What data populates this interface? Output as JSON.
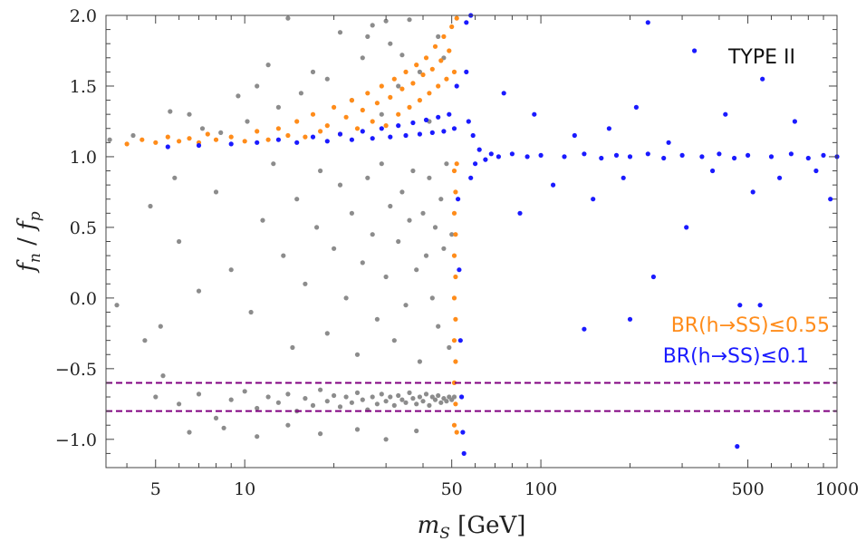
{
  "chart_data": {
    "type": "scatter",
    "annotation": "TYPE II",
    "xlabel": {
      "main": "m",
      "sub": "S",
      "unit": " [GeV]"
    },
    "ylabel": {
      "f1": "f",
      "s1": "n",
      "sep": " / ",
      "f2": "f",
      "s2": "p"
    },
    "x_scale": "log",
    "xlim": [
      3.4,
      1000
    ],
    "ylim": [
      -1.2,
      2.0
    ],
    "x_ticks": [
      {
        "value": 5,
        "label": "5"
      },
      {
        "value": 10,
        "label": "10"
      },
      {
        "value": 50,
        "label": "50"
      },
      {
        "value": 100,
        "label": "100"
      },
      {
        "value": 500,
        "label": "500"
      },
      {
        "value": 1000,
        "label": "1000"
      }
    ],
    "y_ticks": [
      {
        "value": 2.0,
        "label": "2.0"
      },
      {
        "value": 1.5,
        "label": "1.5"
      },
      {
        "value": 1.0,
        "label": "1.0"
      },
      {
        "value": 0.5,
        "label": "0.5"
      },
      {
        "value": 0.0,
        "label": "0.0"
      },
      {
        "value": -0.5,
        "label": "−0.5"
      },
      {
        "value": -1.0,
        "label": "−1.0"
      }
    ],
    "hlines": [
      {
        "y": -0.6,
        "color": "#800080",
        "style": "dashed"
      },
      {
        "y": -0.8,
        "color": "#800080",
        "style": "dashed"
      }
    ],
    "grid": false,
    "legend_position": "right-middle",
    "series": [
      {
        "name": "",
        "color": "#8c8c8c",
        "points": [
          [
            3.5,
            1.12
          ],
          [
            4.2,
            1.15
          ],
          [
            5.6,
            1.32
          ],
          [
            6.5,
            1.3
          ],
          [
            7.2,
            1.2
          ],
          [
            8.3,
            1.17
          ],
          [
            9.5,
            1.43
          ],
          [
            10.2,
            1.25
          ],
          [
            11,
            1.5
          ],
          [
            12,
            1.65
          ],
          [
            13,
            1.35
          ],
          [
            14,
            1.98
          ],
          [
            15.5,
            1.45
          ],
          [
            17,
            1.6
          ],
          [
            19,
            1.55
          ],
          [
            21,
            1.88
          ],
          [
            23,
            1.4
          ],
          [
            25,
            1.7
          ],
          [
            27,
            1.93
          ],
          [
            29,
            1.3
          ],
          [
            31,
            1.8
          ],
          [
            33,
            1.5
          ],
          [
            36,
            1.97
          ],
          [
            39,
            1.6
          ],
          [
            42,
            1.25
          ],
          [
            45,
            1.85
          ],
          [
            47,
            1.7
          ],
          [
            30,
            1.96
          ],
          [
            26,
            1.85
          ],
          [
            34,
            1.72
          ],
          [
            4.8,
            0.65
          ],
          [
            5.2,
            -0.2
          ],
          [
            6,
            0.4
          ],
          [
            7,
            0.05
          ],
          [
            8,
            0.75
          ],
          [
            9,
            0.2
          ],
          [
            10.5,
            -0.1
          ],
          [
            11.5,
            0.55
          ],
          [
            12.5,
            0.95
          ],
          [
            13.5,
            0.3
          ],
          [
            14.5,
            -0.35
          ],
          [
            15,
            0.7
          ],
          [
            16,
            0.1
          ],
          [
            17.5,
            0.5
          ],
          [
            18,
            0.9
          ],
          [
            19,
            -0.25
          ],
          [
            20,
            0.35
          ],
          [
            21,
            0.8
          ],
          [
            22,
            0.0
          ],
          [
            23,
            0.6
          ],
          [
            24,
            -0.4
          ],
          [
            25,
            0.25
          ],
          [
            26,
            0.85
          ],
          [
            27,
            0.45
          ],
          [
            28,
            -0.15
          ],
          [
            29,
            0.95
          ],
          [
            30,
            0.15
          ],
          [
            31,
            0.65
          ],
          [
            32,
            -0.3
          ],
          [
            33,
            0.4
          ],
          [
            34,
            0.75
          ],
          [
            35,
            -0.05
          ],
          [
            36,
            0.55
          ],
          [
            37,
            0.9
          ],
          [
            38,
            0.2
          ],
          [
            39,
            -0.45
          ],
          [
            40,
            0.6
          ],
          [
            41,
            0.3
          ],
          [
            42,
            0.85
          ],
          [
            43,
            0.0
          ],
          [
            44,
            0.5
          ],
          [
            45,
            -0.2
          ],
          [
            46,
            0.7
          ],
          [
            47,
            0.35
          ],
          [
            48,
            0.95
          ],
          [
            49,
            -0.35
          ],
          [
            50,
            0.45
          ],
          [
            5,
            -0.7
          ],
          [
            6,
            -0.75
          ],
          [
            7,
            -0.68
          ],
          [
            8,
            -0.85
          ],
          [
            9,
            -0.72
          ],
          [
            10,
            -0.66
          ],
          [
            11,
            -0.78
          ],
          [
            12,
            -0.7
          ],
          [
            13,
            -0.74
          ],
          [
            14,
            -0.68
          ],
          [
            15,
            -0.8
          ],
          [
            16,
            -0.71
          ],
          [
            17,
            -0.76
          ],
          [
            18,
            -0.65
          ],
          [
            19,
            -0.73
          ],
          [
            20,
            -0.69
          ],
          [
            21,
            -0.77
          ],
          [
            22,
            -0.7
          ],
          [
            23,
            -0.74
          ],
          [
            24,
            -0.67
          ],
          [
            25,
            -0.72
          ],
          [
            26,
            -0.79
          ],
          [
            27,
            -0.7
          ],
          [
            28,
            -0.75
          ],
          [
            29,
            -0.68
          ],
          [
            30,
            -0.73
          ],
          [
            31,
            -0.7
          ],
          [
            32,
            -0.76
          ],
          [
            33,
            -0.69
          ],
          [
            34,
            -0.72
          ],
          [
            35,
            -0.74
          ],
          [
            36,
            -0.67
          ],
          [
            37,
            -0.71
          ],
          [
            38,
            -0.75
          ],
          [
            39,
            -0.7
          ],
          [
            40,
            -0.73
          ],
          [
            41,
            -0.68
          ],
          [
            42,
            -0.76
          ],
          [
            43,
            -0.7
          ],
          [
            44,
            -0.72
          ],
          [
            45,
            -0.69
          ],
          [
            46,
            -0.74
          ],
          [
            47,
            -0.71
          ],
          [
            48,
            -0.73
          ],
          [
            49,
            -0.7
          ],
          [
            50,
            -0.72
          ],
          [
            51,
            -0.7
          ],
          [
            6.5,
            -0.95
          ],
          [
            8.5,
            -0.92
          ],
          [
            11,
            -0.98
          ],
          [
            14,
            -0.9
          ],
          [
            18,
            -0.96
          ],
          [
            24,
            -0.93
          ],
          [
            30,
            -1.0
          ],
          [
            38,
            -0.94
          ],
          [
            3.7,
            -0.05
          ],
          [
            4.6,
            -0.3
          ],
          [
            5.3,
            -0.55
          ],
          [
            5.8,
            0.85
          ]
        ]
      },
      {
        "name": "BR(h→SS)≤0.55",
        "color": "#ff8c1a",
        "points": [
          [
            4,
            1.09
          ],
          [
            4.5,
            1.12
          ],
          [
            5,
            1.1
          ],
          [
            5.5,
            1.14
          ],
          [
            6,
            1.11
          ],
          [
            6.5,
            1.13
          ],
          [
            7,
            1.1
          ],
          [
            7.5,
            1.16
          ],
          [
            8,
            1.12
          ],
          [
            9,
            1.14
          ],
          [
            10,
            1.11
          ],
          [
            11,
            1.18
          ],
          [
            12,
            1.12
          ],
          [
            13,
            1.2
          ],
          [
            14,
            1.15
          ],
          [
            15,
            1.25
          ],
          [
            16,
            1.14
          ],
          [
            17,
            1.3
          ],
          [
            18,
            1.18
          ],
          [
            19,
            1.22
          ],
          [
            20,
            1.35
          ],
          [
            21,
            1.16
          ],
          [
            22,
            1.28
          ],
          [
            23,
            1.4
          ],
          [
            24,
            1.2
          ],
          [
            25,
            1.33
          ],
          [
            26,
            1.45
          ],
          [
            27,
            1.25
          ],
          [
            28,
            1.38
          ],
          [
            29,
            1.5
          ],
          [
            30,
            1.22
          ],
          [
            31,
            1.42
          ],
          [
            32,
            1.55
          ],
          [
            33,
            1.3
          ],
          [
            34,
            1.48
          ],
          [
            35,
            1.6
          ],
          [
            36,
            1.35
          ],
          [
            37,
            1.52
          ],
          [
            38,
            1.65
          ],
          [
            39,
            1.4
          ],
          [
            40,
            1.58
          ],
          [
            41,
            1.7
          ],
          [
            42,
            1.45
          ],
          [
            43,
            1.62
          ],
          [
            44,
            1.78
          ],
          [
            45,
            1.5
          ],
          [
            46,
            1.68
          ],
          [
            47,
            1.85
          ],
          [
            48,
            1.55
          ],
          [
            49,
            1.75
          ],
          [
            50,
            1.92
          ],
          [
            51,
            1.6
          ],
          [
            52,
            1.98
          ],
          [
            51,
            0.9
          ],
          [
            51,
            0.6
          ],
          [
            51,
            0.3
          ],
          [
            51,
            0.0
          ],
          [
            51,
            -0.3
          ],
          [
            51,
            -0.6
          ],
          [
            51,
            -0.9
          ],
          [
            51.5,
            0.75
          ],
          [
            51.5,
            0.45
          ],
          [
            51.5,
            0.15
          ],
          [
            51.5,
            -0.15
          ],
          [
            51.5,
            -0.45
          ],
          [
            51.5,
            -0.75
          ],
          [
            52,
            0.95
          ],
          [
            52,
            -0.95
          ]
        ]
      },
      {
        "name": "BR(h→SS)≤0.1",
        "color": "#1a1aff",
        "points": [
          [
            5.5,
            1.07
          ],
          [
            7,
            1.08
          ],
          [
            9,
            1.09
          ],
          [
            11,
            1.1
          ],
          [
            13,
            1.12
          ],
          [
            15,
            1.1
          ],
          [
            17,
            1.14
          ],
          [
            19,
            1.11
          ],
          [
            21,
            1.16
          ],
          [
            23,
            1.12
          ],
          [
            25,
            1.18
          ],
          [
            27,
            1.13
          ],
          [
            29,
            1.2
          ],
          [
            31,
            1.14
          ],
          [
            33,
            1.22
          ],
          [
            35,
            1.15
          ],
          [
            37,
            1.24
          ],
          [
            39,
            1.16
          ],
          [
            41,
            1.26
          ],
          [
            43,
            1.17
          ],
          [
            45,
            1.28
          ],
          [
            47,
            1.18
          ],
          [
            49,
            1.3
          ],
          [
            51,
            1.2
          ],
          [
            52,
            1.5
          ],
          [
            52.5,
            0.7
          ],
          [
            53,
            0.2
          ],
          [
            53.5,
            -0.3
          ],
          [
            54,
            -0.7
          ],
          [
            54.5,
            -0.95
          ],
          [
            55,
            -1.1
          ],
          [
            56,
            1.6
          ],
          [
            57,
            1.25
          ],
          [
            58,
            0.85
          ],
          [
            59,
            1.15
          ],
          [
            60,
            0.95
          ],
          [
            62,
            1.05
          ],
          [
            65,
            0.98
          ],
          [
            68,
            1.02
          ],
          [
            72,
            1.0
          ],
          [
            56,
            1.95
          ],
          [
            58,
            2.0
          ],
          [
            80,
            1.02
          ],
          [
            90,
            1.0
          ],
          [
            100,
            1.01
          ],
          [
            120,
            1.0
          ],
          [
            140,
            1.02
          ],
          [
            160,
            0.99
          ],
          [
            180,
            1.01
          ],
          [
            200,
            1.0
          ],
          [
            230,
            1.02
          ],
          [
            260,
            0.99
          ],
          [
            300,
            1.01
          ],
          [
            350,
            1.0
          ],
          [
            400,
            1.02
          ],
          [
            450,
            0.99
          ],
          [
            500,
            1.01
          ],
          [
            600,
            1.0
          ],
          [
            700,
            1.02
          ],
          [
            800,
            0.99
          ],
          [
            900,
            1.01
          ],
          [
            1000,
            1.0
          ],
          [
            75,
            1.45
          ],
          [
            85,
            0.6
          ],
          [
            95,
            1.3
          ],
          [
            110,
            0.8
          ],
          [
            130,
            1.15
          ],
          [
            150,
            0.7
          ],
          [
            170,
            1.2
          ],
          [
            190,
            0.85
          ],
          [
            210,
            1.35
          ],
          [
            240,
            0.15
          ],
          [
            270,
            1.1
          ],
          [
            310,
            0.5
          ],
          [
            330,
            1.75
          ],
          [
            380,
            0.9
          ],
          [
            420,
            1.3
          ],
          [
            470,
            -0.05
          ],
          [
            520,
            0.75
          ],
          [
            560,
            1.55
          ],
          [
            640,
            0.85
          ],
          [
            720,
            1.25
          ],
          [
            850,
            0.9
          ],
          [
            950,
            0.7
          ],
          [
            140,
            -0.22
          ],
          [
            230,
            1.95
          ],
          [
            200,
            -0.15
          ],
          [
            460,
            -1.05
          ],
          [
            550,
            -0.05
          ]
        ]
      }
    ]
  }
}
